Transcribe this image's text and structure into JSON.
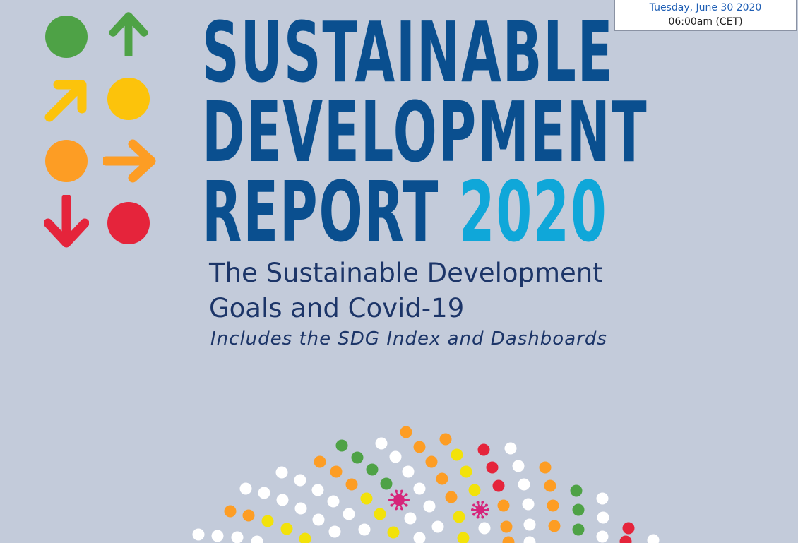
{
  "embargo": {
    "date": "Tuesday, June 30 2020",
    "time": "06:00am (CET)"
  },
  "logo": {
    "colors": {
      "green": "#4ea246",
      "yellow": "#fcc30b",
      "orange": "#fd9d24",
      "red": "#e5243b"
    }
  },
  "title": {
    "line1": "SUSTAINABLE",
    "line2": "DEVELOPMENT",
    "line3": "REPORT",
    "year": "2020"
  },
  "subtitle": {
    "line1": "The Sustainable Development",
    "line2": "Goals and Covid-19"
  },
  "tagline": "Includes the SDG Index and Dashboards"
}
